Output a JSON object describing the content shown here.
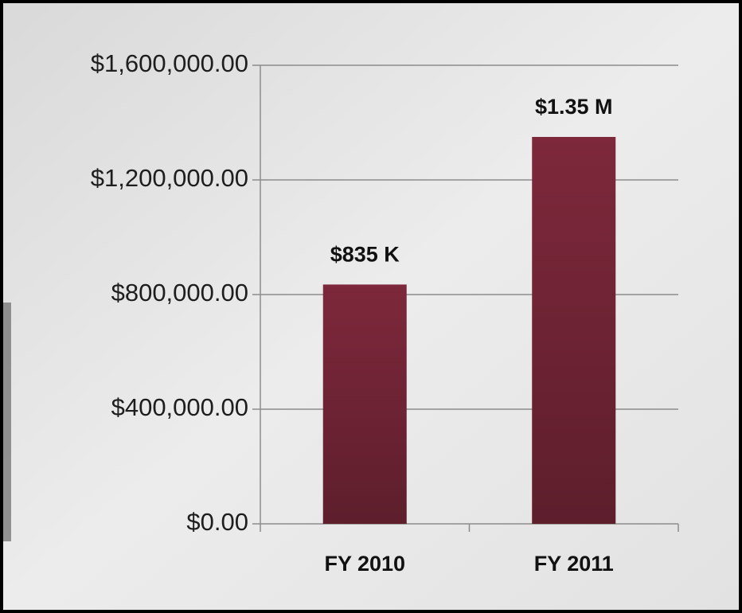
{
  "chart_data": {
    "type": "bar",
    "categories": [
      "FY 2010",
      "FY 2011"
    ],
    "values": [
      835000,
      1350000
    ],
    "value_labels": [
      "$835 K",
      "$1.35 M"
    ],
    "color": "#7d283b",
    "ylim": [
      0,
      1600000
    ],
    "yticks": [
      {
        "value": 0,
        "label": "$0.00"
      },
      {
        "value": 400000,
        "label": "$400,000.00"
      },
      {
        "value": 800000,
        "label": "$800,000.00"
      },
      {
        "value": 1200000,
        "label": "$1,200,000.00"
      },
      {
        "value": 1600000,
        "label": "$1,600,000.00"
      }
    ],
    "grid": true
  }
}
